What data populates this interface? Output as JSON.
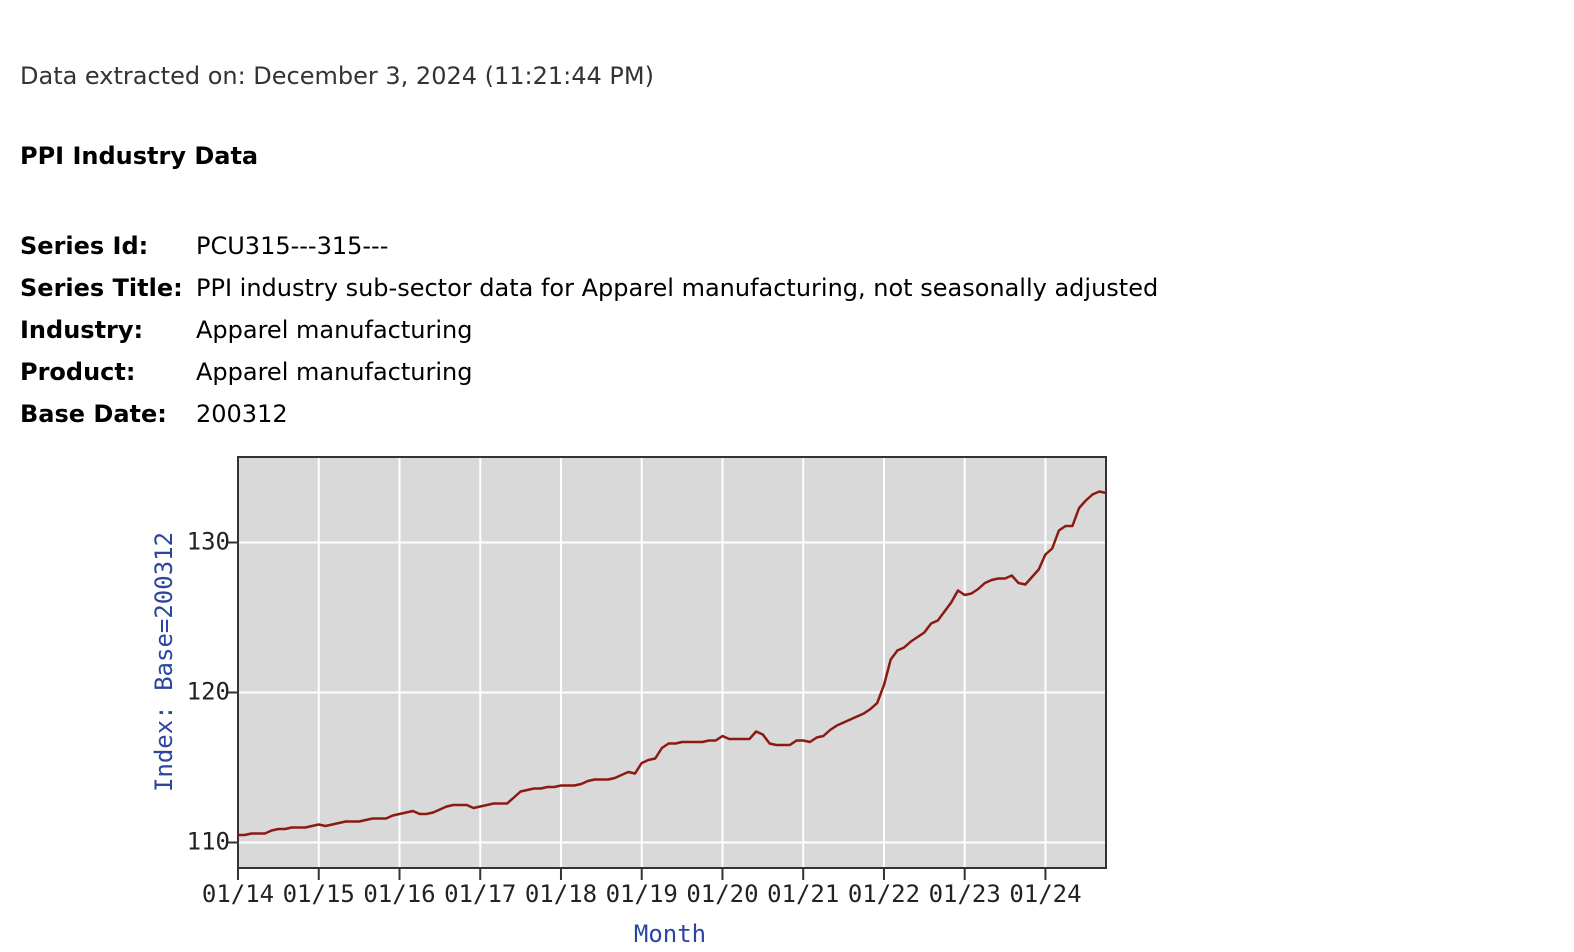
{
  "header": {
    "extracted": "Data extracted on: December 3, 2024 (11:21:44 PM)",
    "title": "PPI Industry Data"
  },
  "fields": [
    {
      "label": "Series Id:",
      "value": "PCU315---315---"
    },
    {
      "label": "Series Title:",
      "value": "PPI industry sub-sector data for Apparel manufacturing, not seasonally adjusted"
    },
    {
      "label": "Industry:",
      "value": "Apparel manufacturing"
    },
    {
      "label": "Product:",
      "value": "Apparel manufacturing"
    },
    {
      "label": "Base Date:",
      "value": "200312"
    }
  ],
  "chart_data": {
    "type": "line",
    "y_label": "Index: Base=200312",
    "x_label": "Month",
    "color": "#8b1a10",
    "grid": true,
    "ylim": [
      108.3,
      135.7
    ],
    "yticks": [
      110,
      120,
      130
    ],
    "categories": [
      "01/14",
      null,
      null,
      null,
      null,
      null,
      null,
      null,
      null,
      null,
      null,
      null,
      "01/15",
      null,
      null,
      null,
      null,
      null,
      null,
      null,
      null,
      null,
      null,
      null,
      "01/16",
      null,
      null,
      null,
      null,
      null,
      null,
      null,
      null,
      null,
      null,
      null,
      "01/17",
      null,
      null,
      null,
      null,
      null,
      null,
      null,
      null,
      null,
      null,
      null,
      "01/18",
      null,
      null,
      null,
      null,
      null,
      null,
      null,
      null,
      null,
      null,
      null,
      "01/19",
      null,
      null,
      null,
      null,
      null,
      null,
      null,
      null,
      null,
      null,
      null,
      "01/20",
      null,
      null,
      null,
      null,
      null,
      null,
      null,
      null,
      null,
      null,
      null,
      "01/21",
      null,
      null,
      null,
      null,
      null,
      null,
      null,
      null,
      null,
      null,
      null,
      "01/22",
      null,
      null,
      null,
      null,
      null,
      null,
      null,
      null,
      null,
      null,
      null,
      "01/23",
      null,
      null,
      null,
      null,
      null,
      null,
      null,
      null,
      null,
      null,
      null,
      "01/24",
      null,
      null,
      null,
      null,
      null,
      null,
      null,
      null,
      null
    ],
    "values": [
      110.5,
      110.5,
      110.6,
      110.6,
      110.6,
      110.8,
      110.9,
      110.9,
      111.0,
      111.0,
      111.0,
      111.1,
      111.2,
      111.1,
      111.2,
      111.3,
      111.4,
      111.4,
      111.4,
      111.5,
      111.6,
      111.6,
      111.6,
      111.8,
      111.9,
      112.0,
      112.1,
      111.9,
      111.9,
      112.0,
      112.2,
      112.4,
      112.5,
      112.5,
      112.5,
      112.3,
      112.4,
      112.5,
      112.6,
      112.6,
      112.6,
      113.0,
      113.4,
      113.5,
      113.6,
      113.6,
      113.7,
      113.7,
      113.8,
      113.8,
      113.8,
      113.9,
      114.1,
      114.2,
      114.2,
      114.2,
      114.3,
      114.5,
      114.7,
      114.6,
      115.3,
      115.5,
      115.6,
      116.3,
      116.6,
      116.6,
      116.7,
      116.7,
      116.7,
      116.7,
      116.8,
      116.8,
      117.1,
      116.9,
      116.9,
      116.9,
      116.9,
      117.4,
      117.2,
      116.6,
      116.5,
      116.5,
      116.5,
      116.8,
      116.8,
      116.7,
      117.0,
      117.1,
      117.5,
      117.8,
      118.0,
      118.2,
      118.4,
      118.6,
      118.9,
      119.3,
      120.5,
      122.2,
      122.8,
      123.0,
      123.4,
      123.7,
      124.0,
      124.6,
      124.8,
      125.4,
      126.0,
      126.8,
      126.5,
      126.6,
      126.9,
      127.3,
      127.5,
      127.6,
      127.6,
      127.8,
      127.3,
      127.2,
      127.7,
      128.2,
      129.2,
      129.6,
      130.8,
      131.1,
      131.1,
      132.3,
      132.8,
      133.2,
      133.4,
      133.3
    ]
  }
}
